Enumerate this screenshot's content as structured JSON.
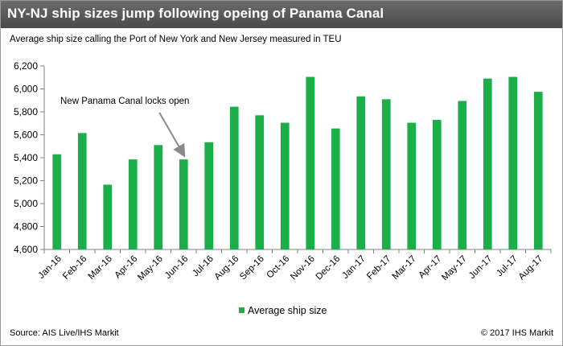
{
  "header": {
    "title": "NY-NJ  ship sizes jump following opeing of Panama Canal"
  },
  "subtitle": "Average ship size calling  the Port of New York and New Jersey measured  in TEU",
  "footer": {
    "source": "Source:  AIS Live/IHS Markit",
    "copyright": "© 2017  IHS Markit"
  },
  "colors": {
    "bar": "#1aaf48",
    "header_bg": "#595959",
    "axis": "#808080"
  },
  "chart_data": {
    "type": "bar",
    "categories": [
      "Jan-16",
      "Feb-16",
      "Mar-16",
      "Apr-16",
      "May-16",
      "Jun-16",
      "Jul-16",
      "Aug-16",
      "Sep-16",
      "Oct-16",
      "Nov-16",
      "Dec-16",
      "Jan-17",
      "Feb-17",
      "Mar-17",
      "Apr-17",
      "May-17",
      "Jun-17",
      "Jul-17",
      "Aug-17"
    ],
    "series": [
      {
        "name": "Average ship size",
        "values": [
          5430,
          5615,
          5165,
          5385,
          5510,
          5385,
          5535,
          5845,
          5770,
          5705,
          6105,
          5655,
          5935,
          5910,
          5705,
          5730,
          5895,
          6090,
          6105,
          5975
        ]
      }
    ],
    "ylim": [
      4600,
      6200
    ],
    "yticks": [
      4600,
      4800,
      5000,
      5200,
      5400,
      5600,
      5800,
      6000,
      6200
    ],
    "ytick_labels": [
      "4,600",
      "4,800",
      "5,000",
      "5,200",
      "5,400",
      "5,600",
      "5,800",
      "6,000",
      "6,200"
    ],
    "grid": false,
    "legend": "bottom-center",
    "annotation": {
      "text": "New Panama Canal locks open",
      "target": "Jun-16"
    }
  }
}
